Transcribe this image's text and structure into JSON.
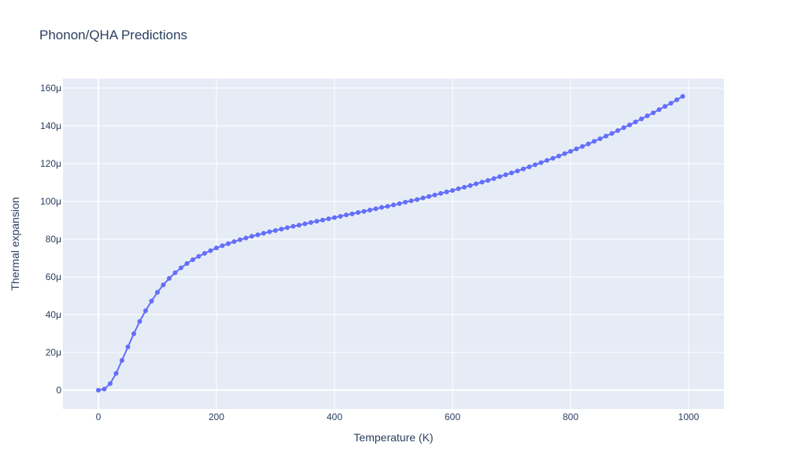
{
  "chart_data": {
    "type": "line",
    "title": "Phonon/QHA Predictions",
    "xlabel": "Temperature (K)",
    "ylabel": "Thermal expansion",
    "xlim": [
      -60,
      1060
    ],
    "ylim": [
      -10,
      165
    ],
    "xticks": [
      0,
      200,
      400,
      600,
      800,
      1000
    ],
    "xtick_labels": [
      "0",
      "200",
      "400",
      "600",
      "800",
      "1000"
    ],
    "yticks": [
      0,
      20,
      40,
      60,
      80,
      100,
      120,
      140,
      160
    ],
    "ytick_labels": [
      "0",
      "20μ",
      "40μ",
      "60μ",
      "80μ",
      "100μ",
      "120μ",
      "140μ",
      "160μ"
    ],
    "grid": true,
    "legend": false,
    "colors": {
      "series": "#636efa",
      "plot_bg": "#e5ecf6",
      "grid": "#ffffff",
      "text": "#2a3f5f"
    },
    "series": [
      {
        "x": [
          0,
          10,
          20,
          30,
          40,
          50,
          60,
          70,
          80,
          90,
          100,
          110,
          120,
          130,
          140,
          150,
          160,
          170,
          180,
          190,
          200,
          210,
          220,
          230,
          240,
          250,
          260,
          270,
          280,
          290,
          300,
          310,
          320,
          330,
          340,
          350,
          360,
          370,
          380,
          390,
          400,
          410,
          420,
          430,
          440,
          450,
          460,
          470,
          480,
          490,
          500,
          510,
          520,
          530,
          540,
          550,
          560,
          570,
          580,
          590,
          600,
          610,
          620,
          630,
          640,
          650,
          660,
          670,
          680,
          690,
          700,
          710,
          720,
          730,
          740,
          750,
          760,
          770,
          780,
          790,
          800,
          810,
          820,
          830,
          840,
          850,
          860,
          870,
          880,
          890,
          900,
          910,
          920,
          930,
          940,
          950,
          960,
          970,
          980,
          990
        ],
        "y": [
          0,
          0.6,
          3.5,
          8.9,
          15.8,
          22.9,
          29.9,
          36.4,
          42.1,
          47.2,
          51.8,
          55.8,
          59.2,
          62.2,
          64.8,
          67.1,
          69.1,
          70.9,
          72.5,
          73.9,
          75.3,
          76.5,
          77.6,
          78.7,
          79.7,
          80.6,
          81.5,
          82.3,
          83.1,
          83.9,
          84.6,
          85.3,
          86.1,
          86.8,
          87.4,
          88.1,
          88.8,
          89.5,
          90.1,
          90.8,
          91.4,
          92.1,
          92.8,
          93.4,
          94.1,
          94.7,
          95.4,
          96.1,
          96.8,
          97.4,
          98.1,
          98.8,
          99.6,
          100.3,
          101.0,
          101.8,
          102.6,
          103.4,
          104.2,
          105.0,
          105.8,
          106.7,
          107.5,
          108.4,
          109.3,
          110.2,
          111.1,
          112.1,
          113.1,
          114.1,
          115.1,
          116.1,
          117.2,
          118.3,
          119.4,
          120.5,
          121.7,
          122.8,
          124.0,
          125.3,
          126.5,
          127.8,
          129.1,
          130.4,
          131.8,
          133.2,
          134.6,
          136.0,
          137.5,
          139.0,
          140.5,
          142.1,
          143.7,
          145.3,
          146.9,
          148.6,
          150.3,
          152.0,
          153.8,
          155.6
        ]
      }
    ]
  }
}
